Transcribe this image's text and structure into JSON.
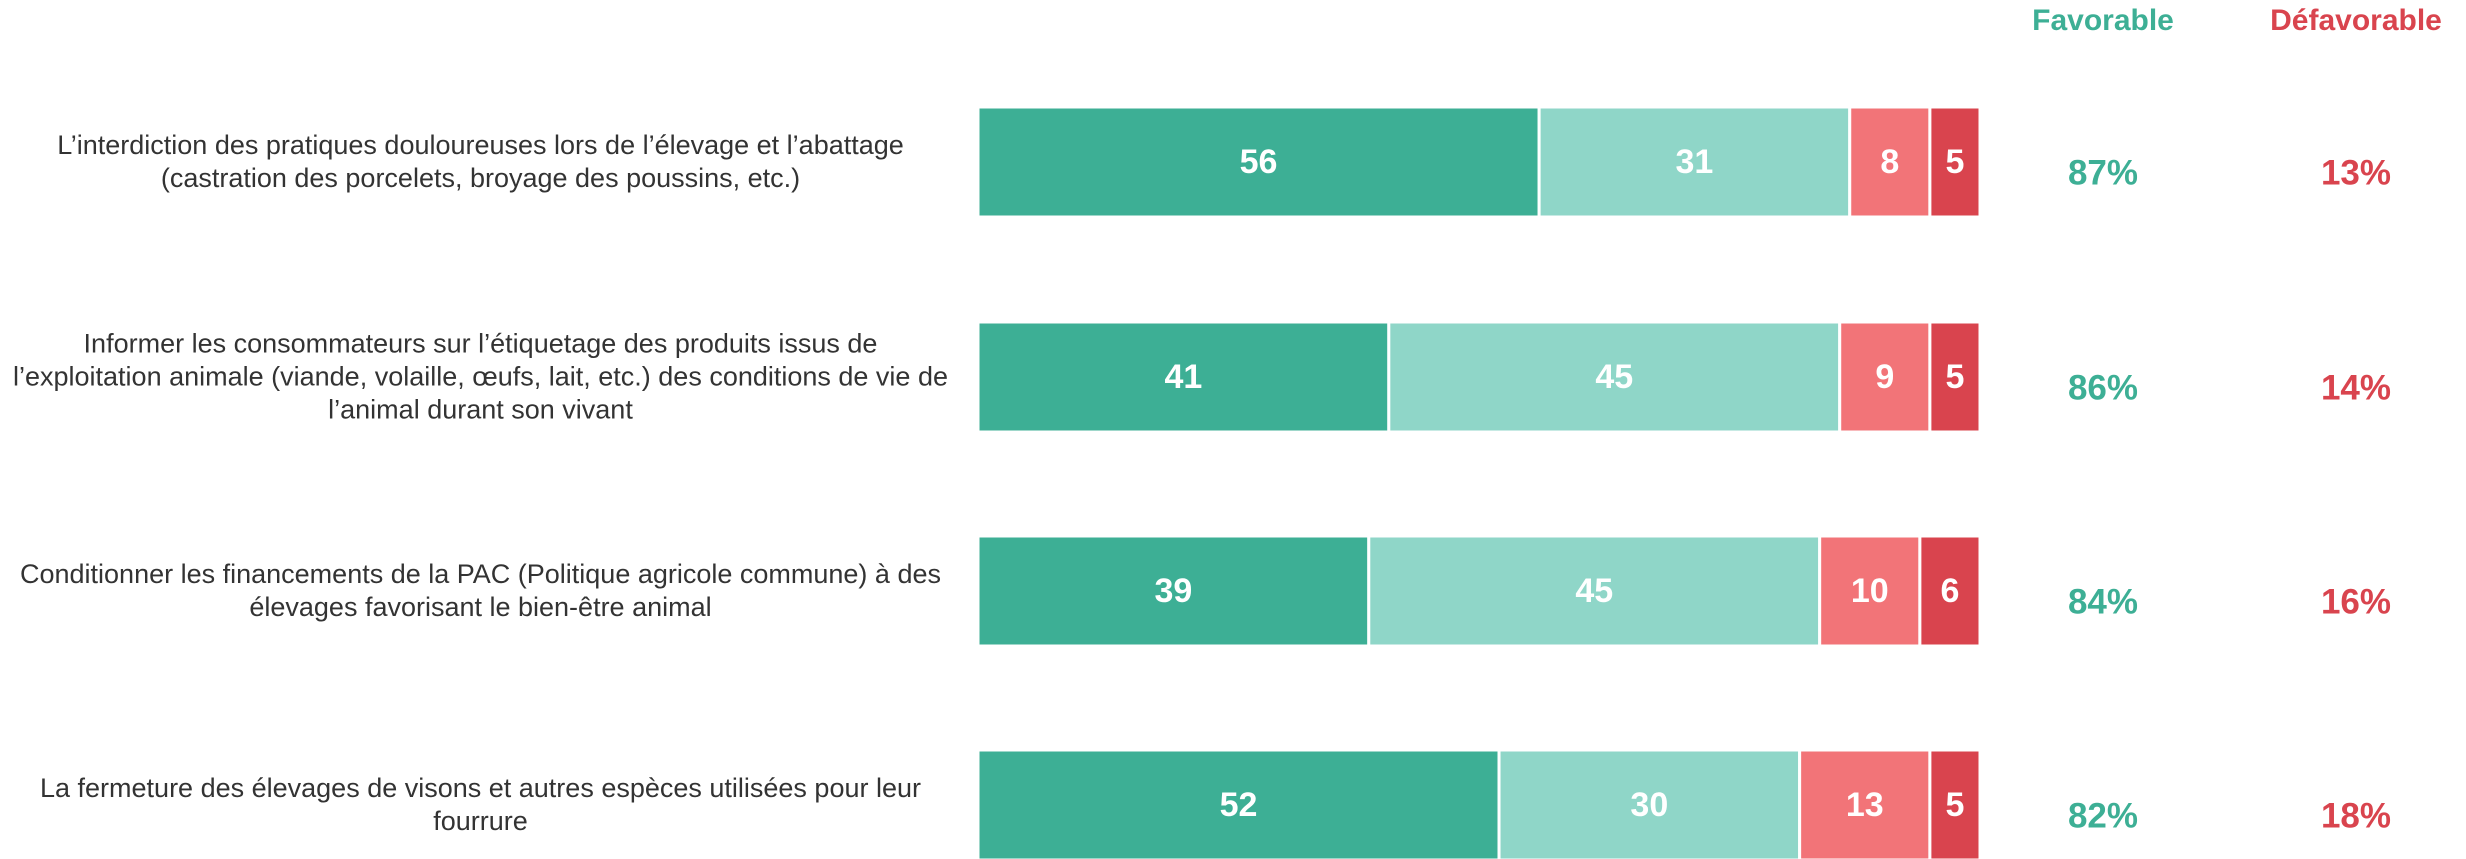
{
  "chart_data": {
    "type": "stacked-barh",
    "categories": [
      "L’interdiction des pratiques douloureuses lors de l’élevage et l’abattage (castration des porcelets, broyage des poussins, etc.)",
      "Informer les consommateurs sur l’étiquetage des produits issus de l’exploitation animale (viande, volaille, œufs, lait, etc.) des conditions de vie de l’animal durant son vivant",
      "Conditionner les financements de la PAC (Politique agricole commune) à des élevages favorisant le bien-être animal",
      "La fermeture des élevages de visons et autres espèces utilisées pour leur fourrure"
    ],
    "series": [
      {
        "color": "#3daf95",
        "values": [
          56,
          41,
          39,
          52
        ]
      },
      {
        "color": "#8fd6c8",
        "values": [
          31,
          45,
          45,
          30
        ]
      },
      {
        "color": "#f27478",
        "values": [
          8,
          9,
          10,
          13
        ]
      },
      {
        "color": "#d9444e",
        "values": [
          5,
          5,
          6,
          5
        ]
      }
    ],
    "xlim": [
      0,
      100
    ],
    "summary": [
      {
        "title": "Favorable",
        "color": "#3daf95",
        "values": [
          87,
          86,
          84,
          82
        ],
        "value_labels": [
          "87%",
          "86%",
          "84%",
          "82%"
        ]
      },
      {
        "title": "Défavorable",
        "color": "#d9444e",
        "values": [
          13,
          14,
          16,
          18
        ],
        "value_labels": [
          "13%",
          "14%",
          "16%",
          "18%"
        ]
      }
    ]
  }
}
